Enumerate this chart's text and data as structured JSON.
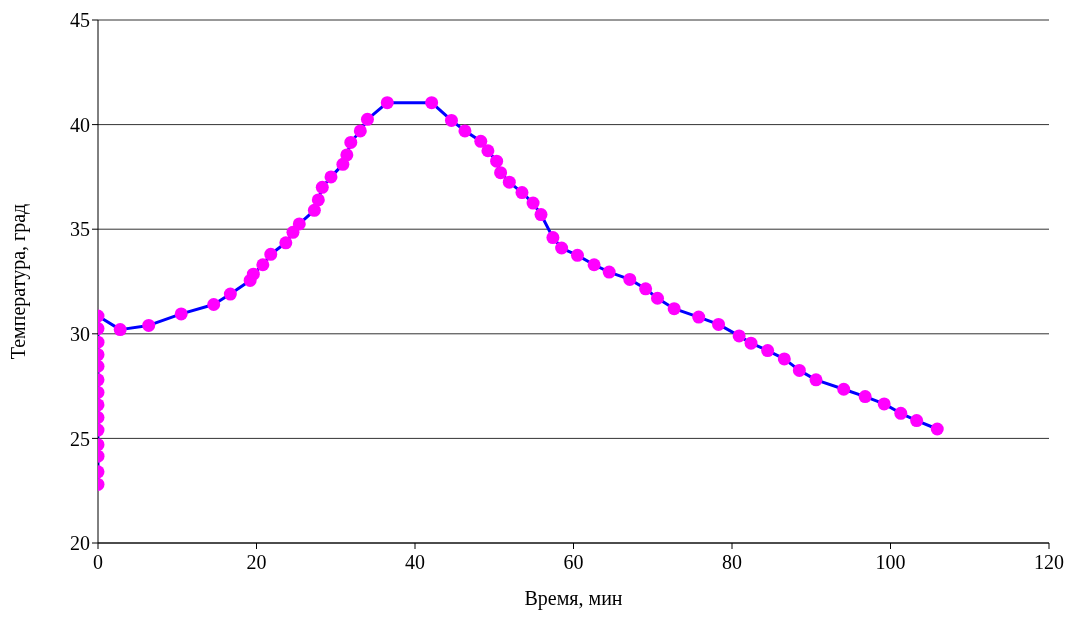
{
  "chart_data": {
    "type": "line",
    "xlabel": "Время, мин",
    "ylabel": "Температура, град",
    "xlim": [
      0,
      120
    ],
    "xticks": [
      0,
      20,
      40,
      60,
      80,
      100,
      120
    ],
    "ylim": [
      20,
      45
    ],
    "yticks": [
      20,
      25,
      30,
      35,
      40,
      45
    ],
    "grid": "y",
    "legend": false,
    "marker": "circle",
    "line_style": "solid",
    "series": [
      {
        "color": "#0000ff",
        "colors": [
          "#ff00ff",
          "#ff00ff",
          "#ff00ff",
          "#ff00ff",
          "#ff00ff",
          "#ff00ff",
          "#ff00ff",
          "#ff00ff",
          "#ff00ff",
          "#ff00ff",
          "#ff00ff",
          "#ff00ff",
          "#ff00ff",
          "#ff00ff",
          "#ff00ff",
          "#ff00ff",
          "#ff00ff",
          "#ff00ff",
          "#ff00ff",
          "#ff00ff",
          "#ff00ff",
          "#ff00ff",
          "#ff00ff",
          "#ff00ff",
          "#ff00ff",
          "#ff00ff",
          "#ff00ff",
          "#ff00ff",
          "#ff00ff",
          "#ff00ff",
          "#ff00ff",
          "#ff00ff",
          "#ff00ff",
          "#ff00ff",
          "#ff00ff",
          "#ff00ff",
          "#ff00ff",
          "#ff00ff",
          "#ff00ff",
          "#ff00ff",
          "#ff00ff",
          "#ff00ff",
          "#ff00ff",
          "#ff00ff",
          "#ff00ff",
          "#ff00ff",
          "#ff00ff",
          "#ff00ff",
          "#ff00ff",
          "#ff00ff",
          "#ff00ff",
          "#ff00ff",
          "#ff00ff",
          "#ff00ff",
          "#ff00ff",
          "#ff00ff",
          "#ff00ff",
          "#ff00ff",
          "#ff00ff",
          "#ff00ff",
          "#ff00ff",
          "#ff00ff",
          "#ff00ff",
          "#ff00ff",
          "#ff00ff",
          "#ff00ff",
          "#ff00ff",
          "#ff00ff",
          "#ff00ff",
          "#ff00ff"
        ],
        "x": [
          0,
          0,
          0,
          0,
          0,
          0,
          0,
          0,
          0,
          0,
          0,
          0,
          0,
          0,
          2.8,
          6.4,
          10.5,
          14.6,
          16.7,
          19.2,
          19.6,
          20.8,
          21.8,
          23.7,
          24.6,
          25.4,
          27.3,
          27.8,
          28.3,
          29.4,
          30.9,
          31.4,
          31.9,
          33.1,
          34.0,
          36.5,
          42.1,
          44.6,
          46.3,
          48.3,
          49.2,
          50.3,
          50.8,
          51.9,
          53.5,
          54.9,
          55.9,
          57.4,
          58.5,
          60.5,
          62.6,
          64.5,
          67.1,
          69.1,
          70.6,
          72.7,
          75.8,
          78.3,
          80.9,
          82.4,
          84.5,
          86.6,
          88.5,
          90.6,
          94.1,
          96.8,
          99.2,
          101.3,
          103.3,
          105.9
        ],
        "values": [
          22.8,
          23.4,
          24.15,
          24.7,
          25.4,
          26.0,
          26.6,
          27.2,
          27.8,
          28.45,
          29.0,
          29.6,
          30.25,
          30.85,
          30.2,
          30.4,
          30.95,
          31.4,
          31.9,
          32.55,
          32.85,
          33.3,
          33.8,
          34.35,
          34.85,
          35.25,
          35.9,
          36.4,
          37.0,
          37.5,
          38.1,
          38.55,
          39.15,
          39.7,
          40.25,
          41.05,
          41.05,
          40.2,
          39.7,
          39.2,
          38.75,
          38.25,
          37.7,
          37.25,
          36.75,
          36.25,
          35.7,
          34.6,
          34.1,
          33.75,
          33.3,
          32.95,
          32.6,
          32.15,
          31.7,
          31.2,
          30.8,
          30.45,
          29.9,
          29.55,
          29.2,
          28.8,
          28.25,
          27.8,
          27.35,
          27.0,
          26.65,
          26.2,
          25.85,
          25.45
        ]
      }
    ]
  }
}
